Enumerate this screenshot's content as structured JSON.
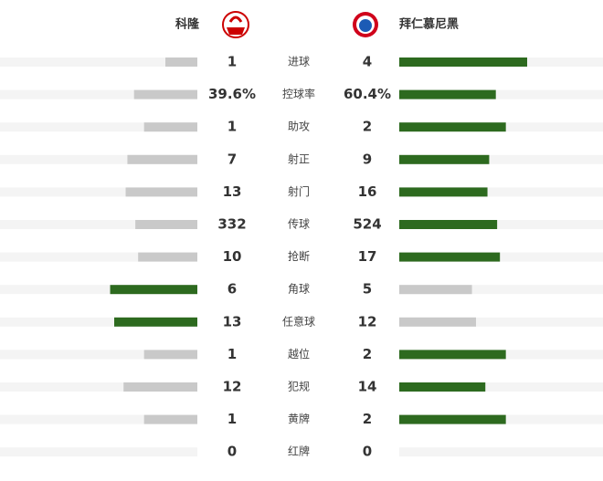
{
  "header": {
    "home_team": "科隆",
    "away_team": "拜仁慕尼黑"
  },
  "stats": [
    {
      "label": "进球",
      "home": 1,
      "away": 4
    },
    {
      "label": "控球率",
      "home": {
        "value": 39.6,
        "label": "39.6%"
      },
      "away": {
        "value": 60.4,
        "label": "60.4%"
      }
    },
    {
      "label": "助攻",
      "home": 1,
      "away": 2
    },
    {
      "label": "射正",
      "home": 7,
      "away": 9
    },
    {
      "label": "射门",
      "home": 13,
      "away": 16
    },
    {
      "label": "传球",
      "home": 332,
      "away": 524
    },
    {
      "label": "抢断",
      "home": 10,
      "away": 17
    },
    {
      "label": "角球",
      "home": 6,
      "away": 5
    },
    {
      "label": "任意球",
      "home": 13,
      "away": 12
    },
    {
      "label": "越位",
      "home": 1,
      "away": 2
    },
    {
      "label": "犯规",
      "home": 12,
      "away": 14
    },
    {
      "label": "黄牌",
      "home": 1,
      "away": 2
    },
    {
      "label": "红牌",
      "home": 0,
      "away": 0
    }
  ]
}
